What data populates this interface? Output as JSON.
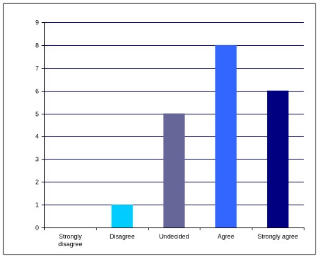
{
  "chart_data": {
    "type": "bar",
    "title": "",
    "xlabel": "",
    "ylabel": "",
    "categories": [
      "Strongly disagree",
      "Disagree",
      "Undecided",
      "Agree",
      "Strongly agree"
    ],
    "category_label_lines": [
      [
        "Strongly",
        "disagree"
      ],
      [
        "Disagree"
      ],
      [
        "Undecided"
      ],
      [
        "Agree"
      ],
      [
        "Strongly agree"
      ]
    ],
    "values": [
      0,
      1,
      5,
      8,
      6
    ],
    "bar_colors": [
      "#ffffff",
      "#00ccff",
      "#666699",
      "#3366ff",
      "#000080"
    ],
    "ylim": [
      0,
      9
    ],
    "yticks": [
      0,
      1,
      2,
      3,
      4,
      5,
      6,
      7,
      8,
      9
    ],
    "grid": true,
    "legend": "none"
  },
  "colors": {
    "plot_background": "#ffffff",
    "gridline": "#000080",
    "axis": "#000000",
    "border": "#000000"
  }
}
